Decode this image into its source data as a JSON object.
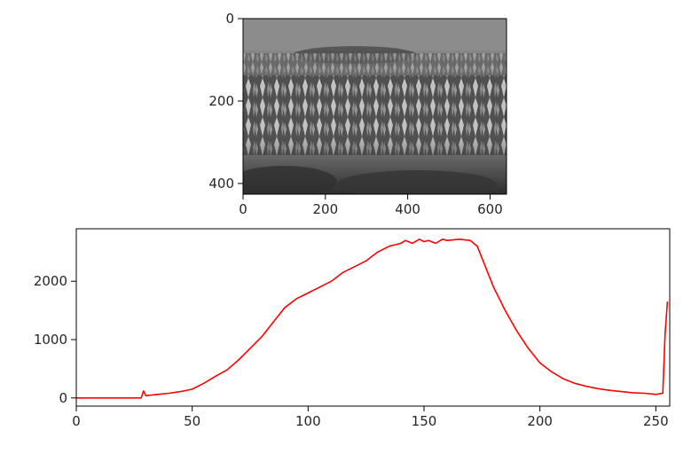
{
  "chart_data": [
    {
      "type": "image",
      "image_semantic": "grayscale-photo-lupine-field",
      "xlim": [
        0,
        640
      ],
      "ylim": [
        0,
        426
      ],
      "y_inverted": true,
      "xticks": [
        0,
        200,
        400,
        600
      ],
      "yticks": [
        0,
        200,
        400
      ],
      "xtick_labels": [
        "0",
        "200",
        "400",
        "600"
      ],
      "ytick_labels": [
        "0",
        "200",
        "400"
      ],
      "grid": false
    },
    {
      "type": "line",
      "color": "#ff0000",
      "xlim": [
        0,
        256
      ],
      "ylim": [
        -140,
        2900
      ],
      "xticks": [
        0,
        50,
        100,
        150,
        200,
        250
      ],
      "yticks": [
        0,
        1000,
        2000
      ],
      "xtick_labels": [
        "0",
        "50",
        "100",
        "150",
        "200",
        "250"
      ],
      "ytick_labels": [
        "0",
        "1000",
        "2000"
      ],
      "grid": false,
      "x": [
        0,
        10,
        20,
        28,
        29,
        30,
        35,
        40,
        45,
        50,
        55,
        60,
        65,
        70,
        75,
        80,
        85,
        90,
        95,
        100,
        105,
        110,
        115,
        120,
        125,
        130,
        135,
        140,
        142,
        145,
        148,
        150,
        152,
        155,
        158,
        160,
        165,
        170,
        173,
        175,
        180,
        185,
        190,
        195,
        200,
        205,
        210,
        215,
        220,
        225,
        230,
        235,
        240,
        245,
        250,
        253,
        254,
        255
      ],
      "y": [
        0,
        0,
        0,
        0,
        120,
        40,
        60,
        80,
        110,
        150,
        250,
        370,
        480,
        650,
        850,
        1050,
        1300,
        1550,
        1700,
        1800,
        1900,
        2000,
        2150,
        2250,
        2350,
        2500,
        2600,
        2650,
        2700,
        2650,
        2720,
        2680,
        2700,
        2650,
        2720,
        2700,
        2720,
        2700,
        2600,
        2400,
        1900,
        1500,
        1150,
        850,
        600,
        450,
        330,
        250,
        200,
        160,
        130,
        110,
        90,
        80,
        60,
        80,
        1100,
        1650
      ]
    }
  ]
}
